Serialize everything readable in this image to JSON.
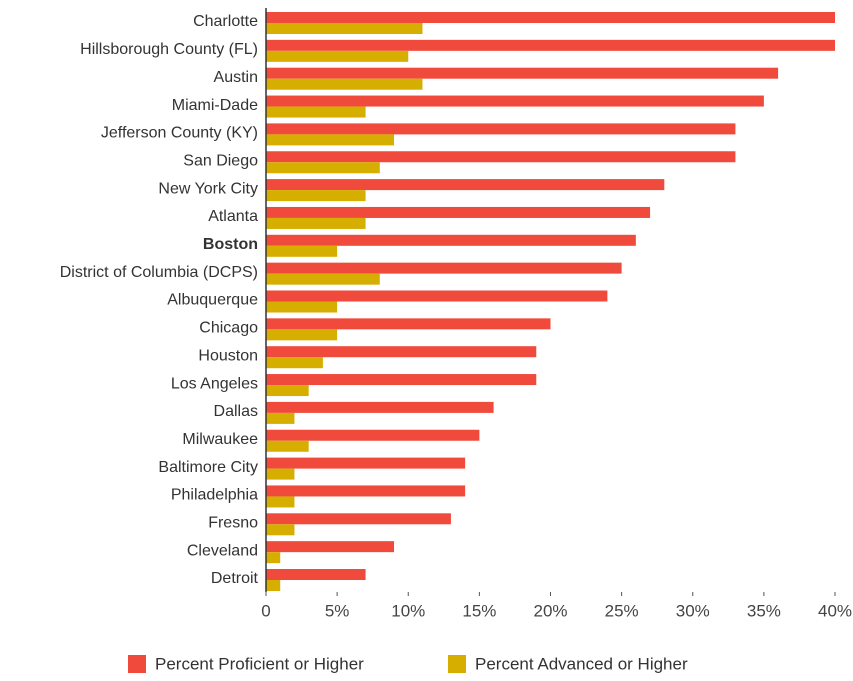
{
  "chart_data": {
    "type": "bar",
    "orientation": "horizontal",
    "categories": [
      "Charlotte",
      "Hillsborough County (FL)",
      "Austin",
      "Miami-Dade",
      "Jefferson County (KY)",
      "San Diego",
      "New York City",
      "Atlanta",
      "Boston",
      "District of Columbia (DCPS)",
      "Albuquerque",
      "Chicago",
      "Houston",
      "Los Angeles",
      "Dallas",
      "Milwaukee",
      "Baltimore City",
      "Philadelphia",
      "Fresno",
      "Cleveland",
      "Detroit"
    ],
    "highlight_index": 8,
    "series": [
      {
        "name": "Percent Proficient or Higher",
        "color": "#f04a3c",
        "values": [
          40,
          40,
          36,
          35,
          33,
          33,
          28,
          27,
          26,
          25,
          24,
          20,
          19,
          19,
          16,
          15,
          14,
          14,
          13,
          9,
          7
        ]
      },
      {
        "name": "Percent Advanced or Higher",
        "color": "#d6ae00",
        "values": [
          11,
          10,
          11,
          7,
          9,
          8,
          7,
          7,
          5,
          8,
          5,
          5,
          4,
          3,
          2,
          3,
          2,
          2,
          2,
          1,
          1
        ]
      }
    ],
    "xlim": [
      0,
      40
    ],
    "xticks": [
      0,
      {
        "value": 5,
        "label": "5%"
      },
      {
        "value": 10,
        "label": "10%"
      },
      {
        "value": 15,
        "label": "15%"
      },
      {
        "value": 20,
        "label": "20%"
      },
      {
        "value": 25,
        "label": "25%"
      },
      {
        "value": 30,
        "label": "30%"
      },
      {
        "value": 35,
        "label": "35%"
      },
      {
        "value": 40,
        "label": "40%"
      }
    ],
    "grid": false,
    "legend": "bottom"
  }
}
